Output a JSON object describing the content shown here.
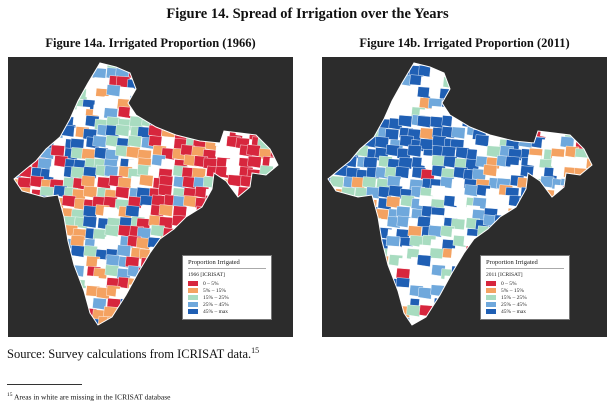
{
  "figure": {
    "title": "Figure 14. Spread of Irrigation over the Years",
    "panels": [
      {
        "title": "Figure 14a. Irrigated Proportion (1966)",
        "legend": {
          "title": "Proportion Irrigated",
          "year_label": "1966 [ICRISAT]",
          "classes": [
            {
              "label": "0 – 5%",
              "color": "#d7263d"
            },
            {
              "label": "5% – 15%",
              "color": "#f4a261"
            },
            {
              "label": "15% – 25%",
              "color": "#a8dcc0"
            },
            {
              "label": "25% – 45%",
              "color": "#6fa8dc"
            },
            {
              "label": "45% – max",
              "color": "#1f5fb4"
            }
          ]
        }
      },
      {
        "title": "Figure 14b. Irrigated Proportion (2011)",
        "legend": {
          "title": "Proportion Irrigated",
          "year_label": "2011 [ICRISAT]",
          "classes": [
            {
              "label": "0 – 5%",
              "color": "#d7263d"
            },
            {
              "label": "5% – 15%",
              "color": "#f4a261"
            },
            {
              "label": "15% – 25%",
              "color": "#a8dcc0"
            },
            {
              "label": "25% – 45%",
              "color": "#6fa8dc"
            },
            {
              "label": "45% – max",
              "color": "#1f5fb4"
            }
          ]
        }
      }
    ],
    "source_text": "Source: Survey calculations from ICRISAT data.",
    "source_footnote_marker": "15",
    "footnote_marker": "15",
    "footnote_text": "Areas in white are missing in the ICRISAT database"
  },
  "colors": {
    "background": "#2c2c2c",
    "missing_data": "#ffffff",
    "district_border": "#ffffff"
  }
}
